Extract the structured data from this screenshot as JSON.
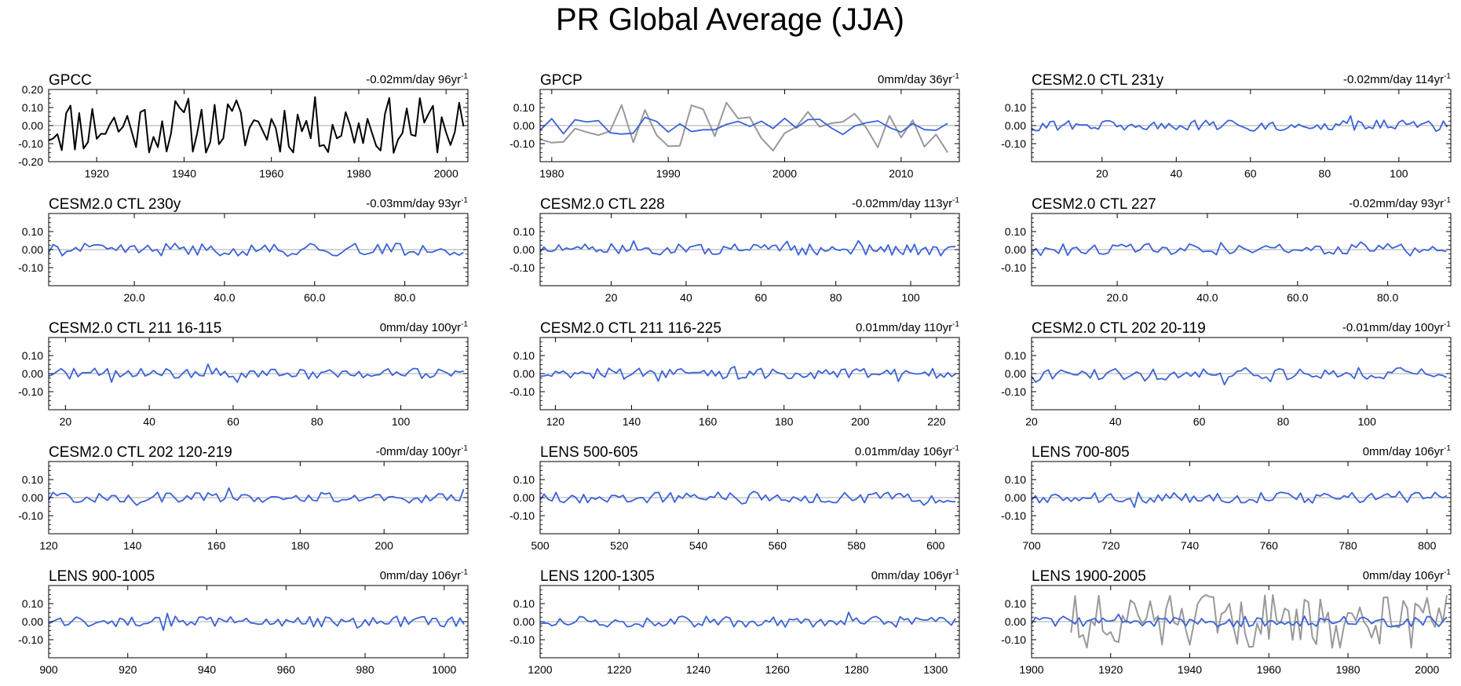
{
  "figure": {
    "title": "PR Global Average (JJA)"
  },
  "colors": {
    "model": "#3b63d6",
    "obs_black": "#000000",
    "obs_gray": "#999999",
    "zero_line": "#aaaaaa",
    "frame": "#000000"
  },
  "chart_data": [
    {
      "type": "line",
      "label": "GPCC",
      "trend": "-0.02mm/day 96yr",
      "trend_units": "-1",
      "xlim": [
        1909,
        2005
      ],
      "ylim": [
        -0.2,
        0.2
      ],
      "yticks": [
        "0.20",
        "0.10",
        "0.00",
        "-0.10",
        "-0.20"
      ],
      "yvals": [
        0.2,
        0.1,
        0,
        -0.1,
        -0.2
      ],
      "xticks": [
        1920,
        1940,
        1960,
        1980,
        2000
      ],
      "series": [
        {
          "name": "obs",
          "color": "black",
          "amp": 0.16,
          "seed": 11
        }
      ]
    },
    {
      "type": "line",
      "label": "GPCP",
      "trend": "0mm/day 36yr",
      "trend_units": "-1",
      "xlim": [
        1979,
        2015
      ],
      "ylim": [
        -0.2,
        0.2
      ],
      "yticks": [
        "0.10",
        "0.00",
        "-0.10"
      ],
      "yvals": [
        0.1,
        0,
        -0.1
      ],
      "xticks": [
        1980,
        1990,
        2000,
        2010
      ],
      "series": [
        {
          "name": "obs",
          "color": "gray",
          "amp": 0.15,
          "seed": 21
        },
        {
          "name": "model",
          "color": "blue",
          "amp": 0.05,
          "seed": 22
        }
      ]
    },
    {
      "type": "line",
      "label": "CESM2.0 CTL 231y",
      "trend": "-0.02mm/day 114yr",
      "trend_units": "-1",
      "xlim": [
        1,
        114
      ],
      "ylim": [
        -0.2,
        0.2
      ],
      "yticks": [
        "0.10",
        "0.00",
        "-0.10"
      ],
      "yvals": [
        0.1,
        0,
        -0.1
      ],
      "xticks": [
        20,
        40,
        60,
        80,
        100
      ],
      "series": [
        {
          "name": "model",
          "color": "blue",
          "amp": 0.03,
          "seed": 31
        }
      ]
    },
    {
      "type": "line",
      "label": "CESM2.0 CTL 230y",
      "trend": "-0.03mm/day 93yr",
      "trend_units": "-1",
      "xlim": [
        1,
        94
      ],
      "ylim": [
        -0.2,
        0.2
      ],
      "yticks": [
        "0.10",
        "0.00",
        "-0.10"
      ],
      "yvals": [
        0.1,
        0,
        -0.1
      ],
      "xticks": [
        "20.0",
        "40.0",
        "60.0",
        "80.0"
      ],
      "series": [
        {
          "name": "model",
          "color": "blue",
          "amp": 0.035,
          "seed": 41
        }
      ]
    },
    {
      "type": "line",
      "label": "CESM2.0 CTL 228",
      "trend": "-0.02mm/day 113yr",
      "trend_units": "-1",
      "xlim": [
        1,
        113
      ],
      "ylim": [
        -0.2,
        0.2
      ],
      "yticks": [
        "0.10",
        "0.00",
        "-0.10"
      ],
      "yvals": [
        0.1,
        0,
        -0.1
      ],
      "xticks": [
        20,
        40,
        60,
        80,
        100
      ],
      "series": [
        {
          "name": "model",
          "color": "blue",
          "amp": 0.03,
          "seed": 51
        }
      ]
    },
    {
      "type": "line",
      "label": "CESM2.0 CTL 227",
      "trend": "-0.02mm/day 93yr",
      "trend_units": "-1",
      "xlim": [
        1,
        94
      ],
      "ylim": [
        -0.2,
        0.2
      ],
      "yticks": [
        "0.10",
        "0.00",
        "-0.10"
      ],
      "yvals": [
        0.1,
        0,
        -0.1
      ],
      "xticks": [
        "20.0",
        "40.0",
        "60.0",
        "80.0"
      ],
      "series": [
        {
          "name": "model",
          "color": "blue",
          "amp": 0.035,
          "seed": 61
        }
      ]
    },
    {
      "type": "line",
      "label": "CESM2.0 CTL 211 16-115",
      "trend": "0mm/day 100yr",
      "trend_units": "-1",
      "xlim": [
        16,
        116
      ],
      "ylim": [
        -0.2,
        0.2
      ],
      "yticks": [
        "0.10",
        "0.00",
        "-0.10"
      ],
      "yvals": [
        0.1,
        0,
        -0.1
      ],
      "xticks": [
        20,
        40,
        60,
        80,
        100
      ],
      "series": [
        {
          "name": "model",
          "color": "blue",
          "amp": 0.03,
          "seed": 71
        }
      ]
    },
    {
      "type": "line",
      "label": "CESM2.0 CTL 211 116-225",
      "trend": "0.01mm/day 110yr",
      "trend_units": "-1",
      "xlim": [
        116,
        226
      ],
      "ylim": [
        -0.2,
        0.2
      ],
      "yticks": [
        "0.10",
        "0.00",
        "-0.10"
      ],
      "yvals": [
        0.1,
        0,
        -0.1
      ],
      "xticks": [
        120,
        140,
        160,
        180,
        200,
        220
      ],
      "series": [
        {
          "name": "model",
          "color": "blue",
          "amp": 0.03,
          "seed": 81
        }
      ]
    },
    {
      "type": "line",
      "label": "CESM2.0 CTL 202 20-119",
      "trend": "-0.01mm/day 100yr",
      "trend_units": "-1",
      "xlim": [
        20,
        120
      ],
      "ylim": [
        -0.2,
        0.2
      ],
      "yticks": [
        "0.10",
        "0.00",
        "-0.10"
      ],
      "yvals": [
        0.1,
        0,
        -0.1
      ],
      "xticks": [
        20,
        40,
        60,
        80,
        100
      ],
      "series": [
        {
          "name": "model",
          "color": "blue",
          "amp": 0.035,
          "seed": 91
        }
      ]
    },
    {
      "type": "line",
      "label": "CESM2.0 CTL 202 120-219",
      "trend": "-0mm/day 100yr",
      "trend_units": "-1",
      "xlim": [
        120,
        220
      ],
      "ylim": [
        -0.2,
        0.2
      ],
      "yticks": [
        "0.10",
        "0.00",
        "-0.10"
      ],
      "yvals": [
        0.1,
        0,
        -0.1
      ],
      "xticks": [
        120,
        140,
        160,
        180,
        200
      ],
      "series": [
        {
          "name": "model",
          "color": "blue",
          "amp": 0.03,
          "seed": 101
        }
      ]
    },
    {
      "type": "line",
      "label": "LENS 500-605",
      "trend": "0.01mm/day 106yr",
      "trend_units": "-1",
      "xlim": [
        500,
        606
      ],
      "ylim": [
        -0.2,
        0.2
      ],
      "yticks": [
        "0.10",
        "0.00",
        "-0.10"
      ],
      "yvals": [
        0.1,
        0,
        -0.1
      ],
      "xticks": [
        500,
        520,
        540,
        560,
        580,
        600
      ],
      "series": [
        {
          "name": "model",
          "color": "blue",
          "amp": 0.03,
          "seed": 111
        }
      ]
    },
    {
      "type": "line",
      "label": "LENS 700-805",
      "trend": "0mm/day 106yr",
      "trend_units": "-1",
      "xlim": [
        700,
        806
      ],
      "ylim": [
        -0.2,
        0.2
      ],
      "yticks": [
        "0.10",
        "0.00",
        "-0.10"
      ],
      "yvals": [
        0.1,
        0,
        -0.1
      ],
      "xticks": [
        700,
        720,
        740,
        760,
        780,
        800
      ],
      "series": [
        {
          "name": "model",
          "color": "blue",
          "amp": 0.03,
          "seed": 121
        }
      ]
    },
    {
      "type": "line",
      "label": "LENS 900-1005",
      "trend": "0mm/day 106yr",
      "trend_units": "-1",
      "xlim": [
        900,
        1006
      ],
      "ylim": [
        -0.2,
        0.2
      ],
      "yticks": [
        "0.10",
        "0.00",
        "-0.10"
      ],
      "yvals": [
        0.1,
        0,
        -0.1
      ],
      "xticks": [
        900,
        920,
        940,
        960,
        980,
        1000
      ],
      "series": [
        {
          "name": "model",
          "color": "blue",
          "amp": 0.03,
          "seed": 131
        }
      ]
    },
    {
      "type": "line",
      "label": "LENS 1200-1305",
      "trend": "0mm/day 106yr",
      "trend_units": "-1",
      "xlim": [
        1200,
        1306
      ],
      "ylim": [
        -0.2,
        0.2
      ],
      "yticks": [
        "0.10",
        "0.00",
        "-0.10"
      ],
      "yvals": [
        0.1,
        0,
        -0.1
      ],
      "xticks": [
        1200,
        1220,
        1240,
        1260,
        1280,
        1300
      ],
      "series": [
        {
          "name": "model",
          "color": "blue",
          "amp": 0.03,
          "seed": 141
        }
      ]
    },
    {
      "type": "line",
      "label": "LENS 1900-2005",
      "trend": "0mm/day 106yr",
      "trend_units": "-1",
      "xlim": [
        1900,
        2006
      ],
      "ylim": [
        -0.2,
        0.2
      ],
      "yticks": [
        "0.10",
        "0.00",
        "-0.10"
      ],
      "yvals": [
        0.1,
        0,
        -0.1
      ],
      "xticks": [
        1900,
        1920,
        1940,
        1960,
        1980,
        2000
      ],
      "series": [
        {
          "name": "obs",
          "color": "gray",
          "amp": 0.15,
          "seed": 151,
          "start": 1910
        },
        {
          "name": "model",
          "color": "blue",
          "amp": 0.03,
          "seed": 152
        }
      ]
    }
  ]
}
